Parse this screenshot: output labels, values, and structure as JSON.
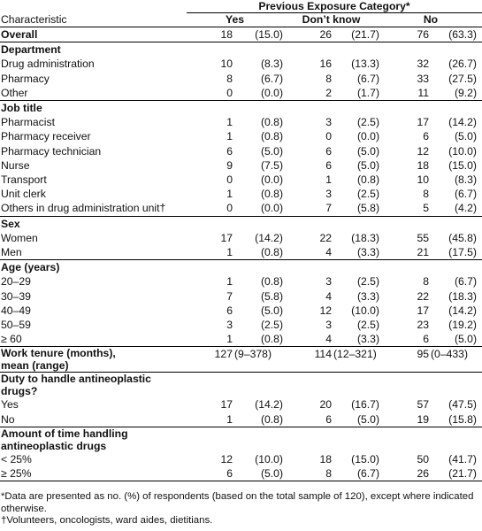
{
  "table": {
    "group_header": "Previous Exposure Category*",
    "col_char": "Characteristic",
    "col_yes": "Yes",
    "col_dk": "Don’t know",
    "col_no": "No",
    "overall": {
      "label": "Overall",
      "yes_n": "18",
      "yes_p": "(15.0)",
      "dk_n": "26",
      "dk_p": "(21.7)",
      "no_n": "76",
      "no_p": "(63.3)"
    },
    "department": {
      "title": "Department",
      "rows": [
        {
          "label": "Drug administration",
          "yes_n": "10",
          "yes_p": "(8.3)",
          "dk_n": "16",
          "dk_p": "(13.3)",
          "no_n": "32",
          "no_p": "(26.7)"
        },
        {
          "label": "Pharmacy",
          "yes_n": "8",
          "yes_p": "(6.7)",
          "dk_n": "8",
          "dk_p": "(6.7)",
          "no_n": "33",
          "no_p": "(27.5)"
        },
        {
          "label": "Other",
          "yes_n": "0",
          "yes_p": "(0.0)",
          "dk_n": "2",
          "dk_p": "(1.7)",
          "no_n": "11",
          "no_p": "(9.2)"
        }
      ]
    },
    "job": {
      "title": "Job title",
      "rows": [
        {
          "label": "Pharmacist",
          "yes_n": "1",
          "yes_p": "(0.8)",
          "dk_n": "3",
          "dk_p": "(2.5)",
          "no_n": "17",
          "no_p": "(14.2)"
        },
        {
          "label": "Pharmacy receiver",
          "yes_n": "1",
          "yes_p": "(0.8)",
          "dk_n": "0",
          "dk_p": "(0.0)",
          "no_n": "6",
          "no_p": "(5.0)"
        },
        {
          "label": "Pharmacy technician",
          "yes_n": "6",
          "yes_p": "(5.0)",
          "dk_n": "6",
          "dk_p": "(5.0)",
          "no_n": "12",
          "no_p": "(10.0)"
        },
        {
          "label": "Nurse",
          "yes_n": "9",
          "yes_p": "(7.5)",
          "dk_n": "6",
          "dk_p": "(5.0)",
          "no_n": "18",
          "no_p": "(15.0)"
        },
        {
          "label": "Transport",
          "yes_n": "0",
          "yes_p": "(0.0)",
          "dk_n": "1",
          "dk_p": "(0.8)",
          "no_n": "10",
          "no_p": "(8.3)"
        },
        {
          "label": "Unit clerk",
          "yes_n": "1",
          "yes_p": "(0.8)",
          "dk_n": "3",
          "dk_p": "(2.5)",
          "no_n": "8",
          "no_p": "(6.7)"
        },
        {
          "label": "Others in drug administration unit†",
          "yes_n": "0",
          "yes_p": "(0.0)",
          "dk_n": "7",
          "dk_p": "(5.8)",
          "no_n": "5",
          "no_p": "(4.2)"
        }
      ]
    },
    "sex": {
      "title": "Sex",
      "rows": [
        {
          "label": "Women",
          "yes_n": "17",
          "yes_p": "(14.2)",
          "dk_n": "22",
          "dk_p": "(18.3)",
          "no_n": "55",
          "no_p": "(45.8)"
        },
        {
          "label": "Men",
          "yes_n": "1",
          "yes_p": "(0.8)",
          "dk_n": "4",
          "dk_p": "(3.3)",
          "no_n": "21",
          "no_p": "(17.5)"
        }
      ]
    },
    "age": {
      "title": "Age (years)",
      "rows": [
        {
          "label": "20–29",
          "yes_n": "1",
          "yes_p": "(0.8)",
          "dk_n": "3",
          "dk_p": "(2.5)",
          "no_n": "8",
          "no_p": "(6.7)"
        },
        {
          "label": "30–39",
          "yes_n": "7",
          "yes_p": "(5.8)",
          "dk_n": "4",
          "dk_p": "(3.3)",
          "no_n": "22",
          "no_p": "(18.3)"
        },
        {
          "label": "40–49",
          "yes_n": "6",
          "yes_p": "(5.0)",
          "dk_n": "12",
          "dk_p": "(10.0)",
          "no_n": "17",
          "no_p": "(14.2)"
        },
        {
          "label": "50–59",
          "yes_n": "3",
          "yes_p": "(2.5)",
          "dk_n": "3",
          "dk_p": "(2.5)",
          "no_n": "23",
          "no_p": "(19.2)"
        },
        {
          "label": "≥ 60",
          "yes_n": "1",
          "yes_p": "(0.8)",
          "dk_n": "4",
          "dk_p": "(3.3)",
          "no_n": "6",
          "no_p": "(5.0)"
        }
      ]
    },
    "tenure": {
      "title_line1": "Work tenure (months),",
      "title_line2": "mean (range)",
      "yes_n": "127",
      "yes_p": "(9–378)",
      "dk_n": "114",
      "dk_p": "(12–321)",
      "no_n": "95",
      "no_p": "(0–433)"
    },
    "duty": {
      "title_line1": "Duty to handle antineoplastic",
      "title_line2": "drugs?",
      "rows": [
        {
          "label": "Yes",
          "yes_n": "17",
          "yes_p": "(14.2)",
          "dk_n": "20",
          "dk_p": "(16.7)",
          "no_n": "57",
          "no_p": "(47.5)"
        },
        {
          "label": "No",
          "yes_n": "1",
          "yes_p": "(0.8)",
          "dk_n": "6",
          "dk_p": "(5.0)",
          "no_n": "19",
          "no_p": "(15.8)"
        }
      ]
    },
    "amount": {
      "title_line1": "Amount of time handling",
      "title_line2": "antineoplastic drugs",
      "rows": [
        {
          "label": "< 25%",
          "yes_n": "12",
          "yes_p": "(10.0)",
          "dk_n": "18",
          "dk_p": "(15.0)",
          "no_n": "50",
          "no_p": "(41.7)"
        },
        {
          "label": "≥ 25%",
          "yes_n": "6",
          "yes_p": "(5.0)",
          "dk_n": "8",
          "dk_p": "(6.7)",
          "no_n": "26",
          "no_p": "(21.7)"
        }
      ]
    }
  },
  "notes": {
    "note1": "*Data are presented as no. (%) of respondents (based on the total sample of 120), except where indicated otherwise.",
    "note2": "†Volunteers, oncologists, ward aides, dietitians."
  }
}
